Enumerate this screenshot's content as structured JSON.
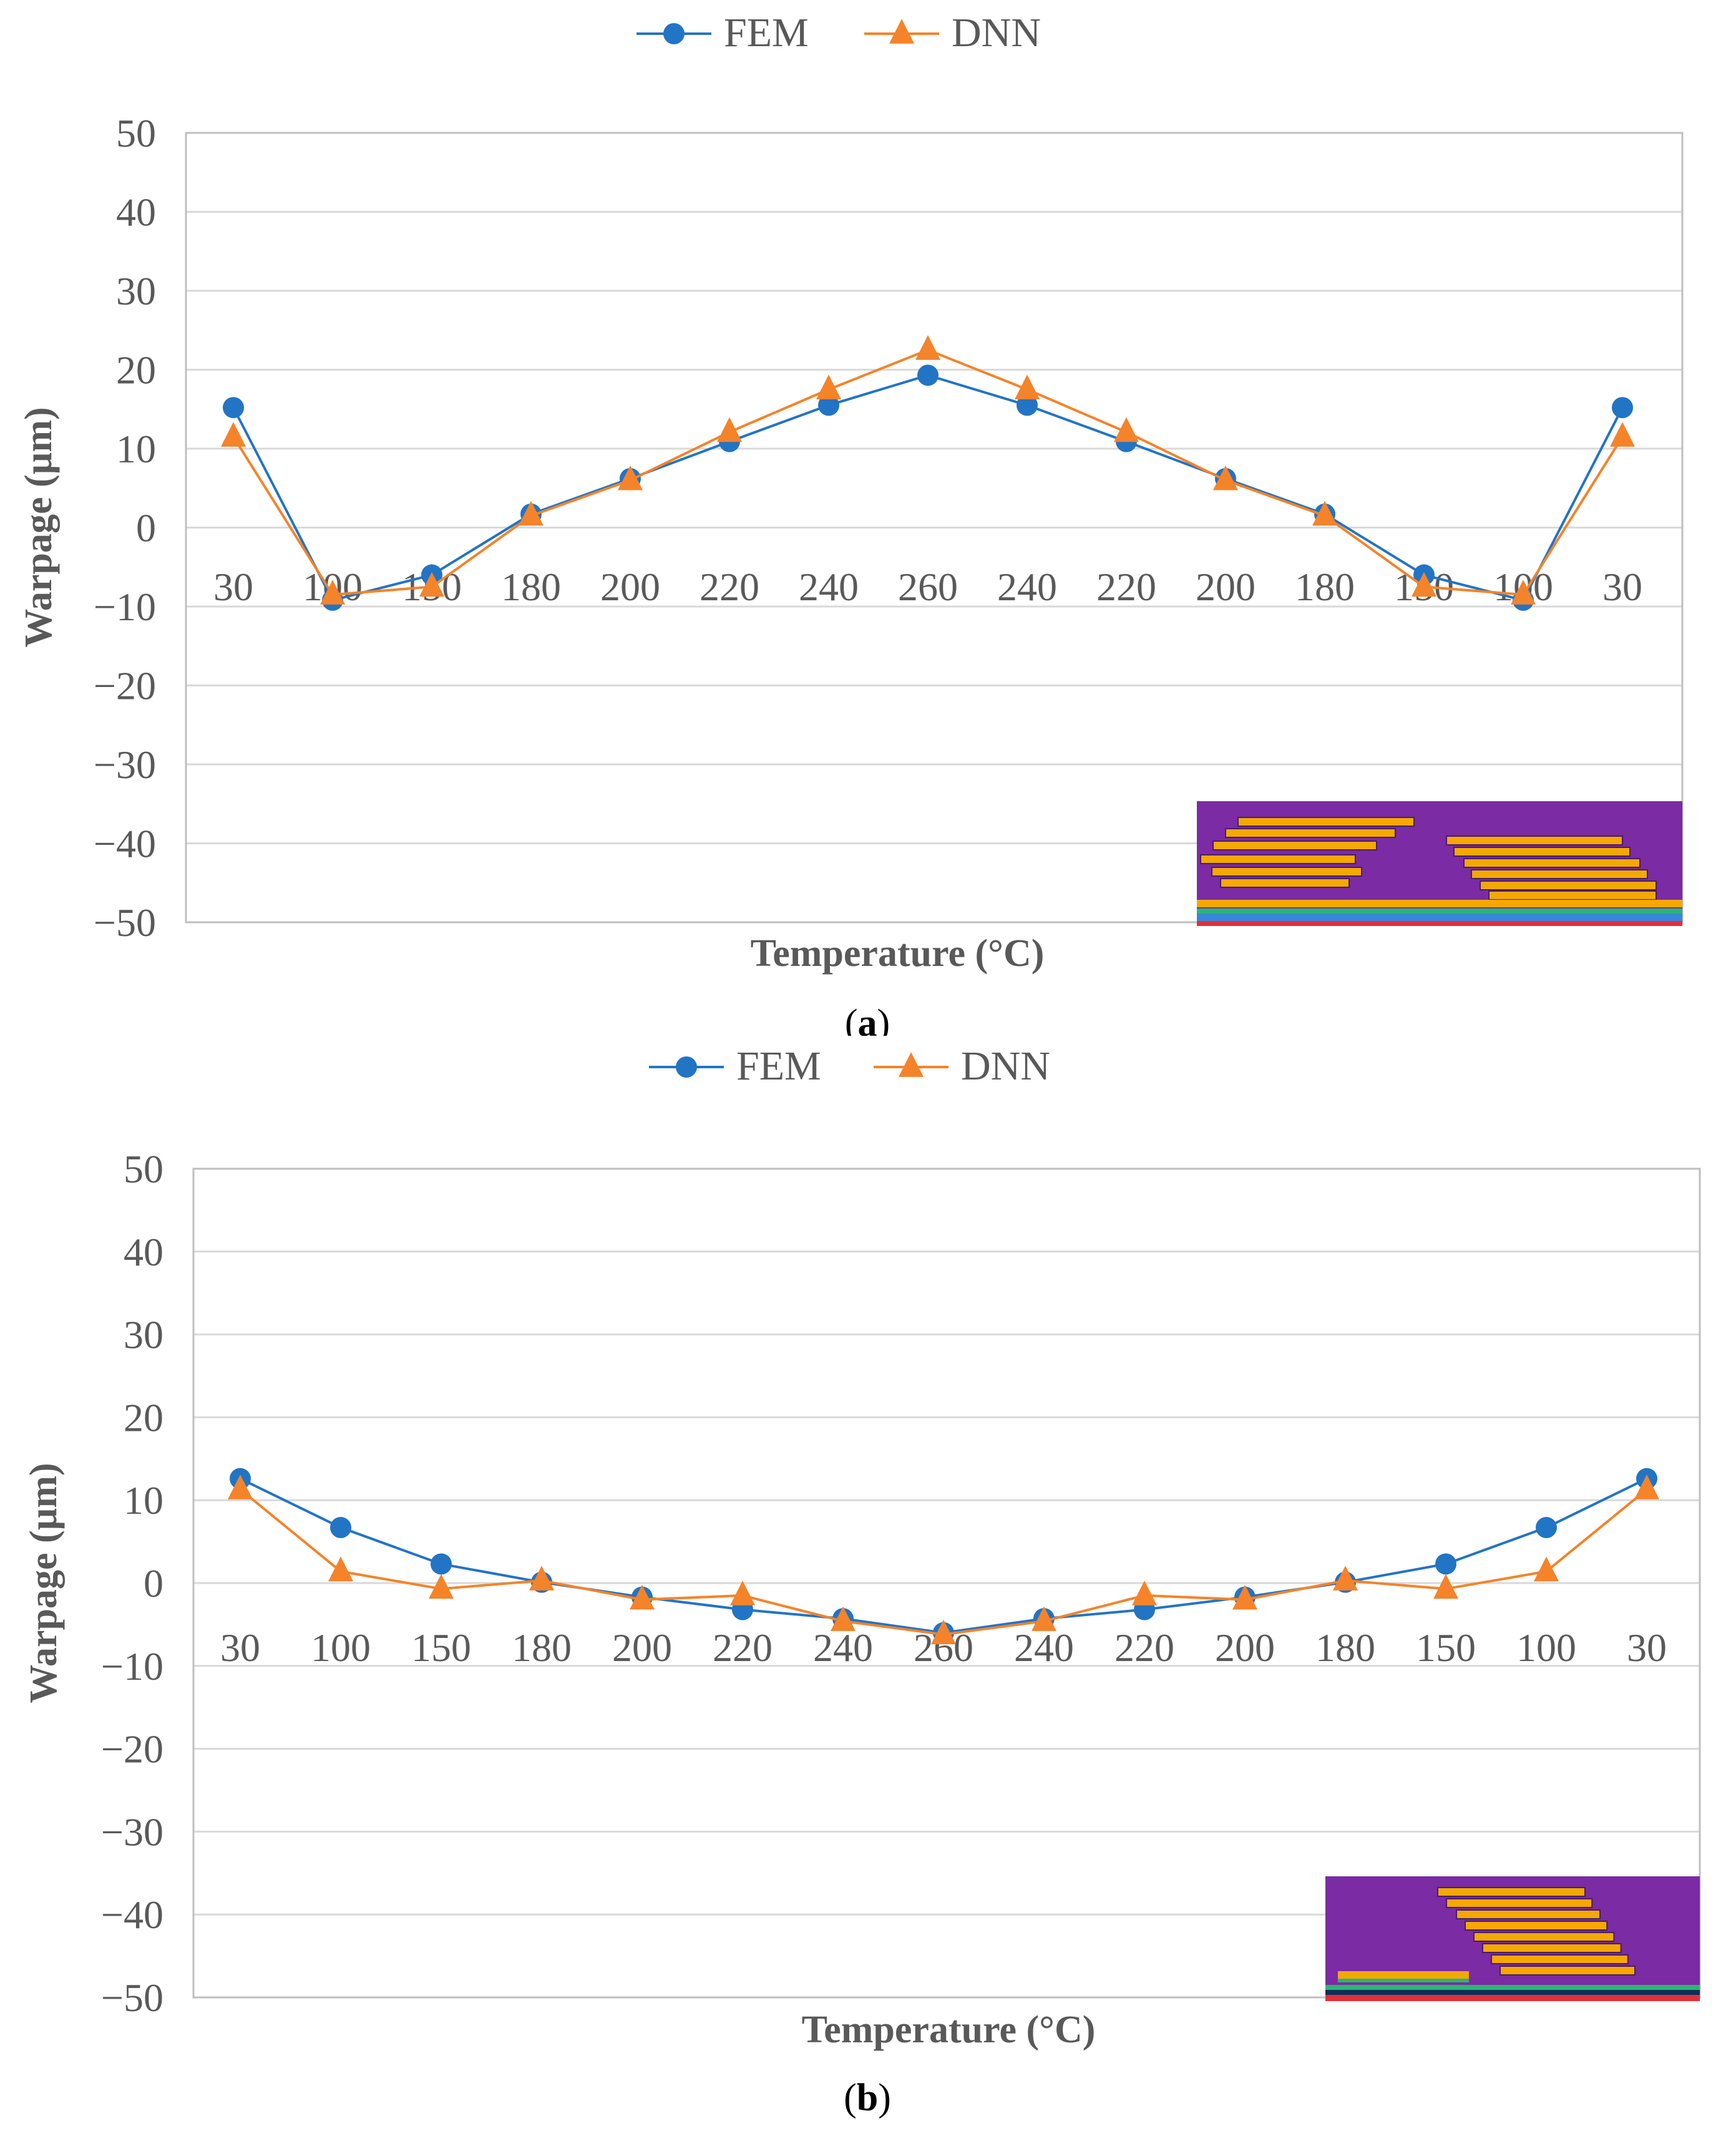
{
  "figure": {
    "panels": [
      {
        "caption_letter": "a",
        "legend": [
          {
            "label": "FEM"
          },
          {
            "label": "DNN"
          }
        ]
      },
      {
        "caption_letter": "b",
        "legend": [
          {
            "label": "FEM"
          },
          {
            "label": "DNN"
          }
        ]
      }
    ]
  },
  "colors": {
    "fem": "#2274C5",
    "dnn": "#F5832A",
    "grid": "#D9D9D9",
    "axis_border": "#BFBFBF",
    "inset_background": "#7B2BA3",
    "inset_layer": "#F5A800",
    "inset_stripe": "#3A86D8"
  },
  "chart_data": [
    {
      "type": "line",
      "panel": "a",
      "title": "",
      "xlabel": "Temperature (°C)",
      "ylabel": "Warpage (µm)",
      "ylim": [
        -50,
        50
      ],
      "yticks": [
        50,
        40,
        30,
        20,
        10,
        0,
        -10,
        -20,
        -30,
        -40,
        -50
      ],
      "ytick_labels": [
        "50",
        "40",
        "30",
        "20",
        "10",
        "0",
        "−10",
        "−20",
        "−30",
        "−40",
        "−50"
      ],
      "grid": true,
      "legend_position": "top-center",
      "categories": [
        "30",
        "100",
        "150",
        "180",
        "200",
        "220",
        "240",
        "260",
        "240",
        "220",
        "200",
        "180",
        "150",
        "100",
        "30"
      ],
      "series": [
        {
          "name": "FEM",
          "marker": "circle",
          "values": [
            15.2,
            -9.2,
            -6.0,
            1.7,
            6.2,
            10.9,
            15.5,
            19.3,
            15.5,
            10.9,
            6.2,
            1.7,
            -6.0,
            -9.2,
            15.2
          ]
        },
        {
          "name": "DNN",
          "marker": "triangle",
          "values": [
            11.5,
            -8.5,
            -7.5,
            1.5,
            6.0,
            12.1,
            17.5,
            22.5,
            17.5,
            12.1,
            6.0,
            1.5,
            -7.5,
            -8.5,
            11.5
          ]
        }
      ]
    },
    {
      "type": "line",
      "panel": "b",
      "title": "",
      "xlabel": "Temperature (°C)",
      "ylabel": "Warpage (µm)",
      "ylim": [
        -50,
        50
      ],
      "yticks": [
        50,
        40,
        30,
        20,
        10,
        0,
        -10,
        -20,
        -30,
        -40,
        -50
      ],
      "ytick_labels": [
        "50",
        "40",
        "30",
        "20",
        "10",
        "0",
        "−10",
        "−20",
        "−30",
        "−40",
        "−50"
      ],
      "grid": true,
      "legend_position": "top-center",
      "categories": [
        "30",
        "100",
        "150",
        "180",
        "200",
        "220",
        "240",
        "260",
        "240",
        "220",
        "200",
        "180",
        "150",
        "100",
        "30"
      ],
      "series": [
        {
          "name": "FEM",
          "marker": "circle",
          "values": [
            12.6,
            6.7,
            2.3,
            0.1,
            -1.7,
            -3.2,
            -4.3,
            -6.0,
            -4.3,
            -3.2,
            -1.7,
            0.1,
            2.3,
            6.7,
            12.6
          ]
        },
        {
          "name": "DNN",
          "marker": "triangle",
          "values": [
            11.3,
            1.4,
            -0.7,
            0.3,
            -2.0,
            -1.5,
            -4.6,
            -6.2,
            -4.6,
            -1.5,
            -2.0,
            0.3,
            -0.7,
            1.4,
            11.3
          ]
        }
      ]
    }
  ]
}
